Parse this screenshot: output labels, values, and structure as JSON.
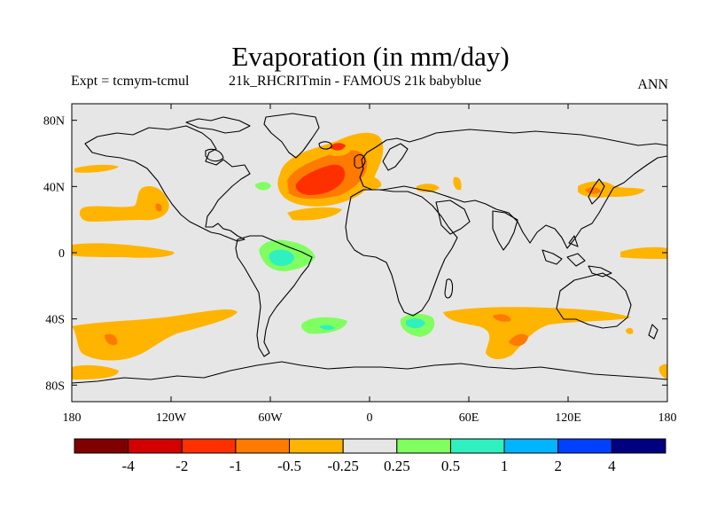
{
  "title": "Evaporation (in mm/day)",
  "expt_label": "Expt = tcmym-tcmul",
  "run_label": "21k_RHCRITmin - FAMOUS 21k babyblue",
  "season": "ANN",
  "map": {
    "projection": "cylindrical equidistant",
    "background_color": "#e6e6e6",
    "lon_ticks": [
      "180",
      "120W",
      "60W",
      "0",
      "60E",
      "120E",
      "180"
    ],
    "lat_ticks": [
      "80N",
      "40N",
      "0",
      "40S",
      "80S"
    ]
  },
  "colorbar": {
    "colors": [
      "#800000",
      "#d40000",
      "#ff3000",
      "#ff7a00",
      "#ffb400",
      "#e6e6e6",
      "#80ff60",
      "#30f0c0",
      "#00b4ff",
      "#0040ff",
      "#000080"
    ],
    "labels": [
      "-4",
      "-2",
      "-1",
      "-0.5",
      "-0.25",
      "0.25",
      "0.5",
      "1",
      "2",
      "4"
    ]
  }
}
